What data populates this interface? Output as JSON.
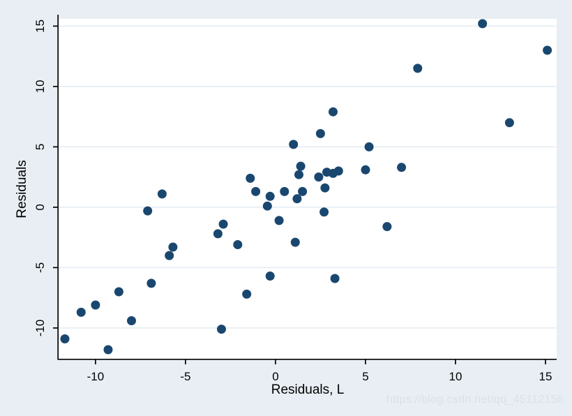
{
  "watermark": {
    "text": "https://blog.csdn.net/qq_45112156"
  },
  "chart_data": {
    "type": "scatter",
    "title": "",
    "xlabel": "Residuals, L",
    "ylabel": "Residuals",
    "xlim": [
      -12.05,
      15.62
    ],
    "ylim": [
      -12.55,
      15.6
    ],
    "xticks": [
      -10,
      -5,
      0,
      5,
      10,
      15
    ],
    "yticks": [
      -10,
      -5,
      0,
      5,
      10,
      15
    ],
    "grid": "horizontal-only",
    "legend_position": "none",
    "marker_color": "#1a476f",
    "background_color": "#e8eef3",
    "plot_background": "#ffffff",
    "gridline_color": "#e3ebf1",
    "axis_color": "#000000",
    "points": [
      [
        11.5,
        15.2
      ],
      [
        15.1,
        13.0
      ],
      [
        7.9,
        11.5
      ],
      [
        13.0,
        7.0
      ],
      [
        3.2,
        7.9
      ],
      [
        2.5,
        6.1
      ],
      [
        1.0,
        5.2
      ],
      [
        5.2,
        5.0
      ],
      [
        5.0,
        3.1
      ],
      [
        7.0,
        3.3
      ],
      [
        1.4,
        3.4
      ],
      [
        1.3,
        2.7
      ],
      [
        -1.4,
        2.4
      ],
      [
        2.4,
        2.5
      ],
      [
        2.85,
        2.9
      ],
      [
        3.2,
        2.8
      ],
      [
        3.5,
        3.0
      ],
      [
        2.75,
        1.6
      ],
      [
        -1.1,
        1.3
      ],
      [
        -0.3,
        0.9
      ],
      [
        0.5,
        1.3
      ],
      [
        1.5,
        1.3
      ],
      [
        1.2,
        0.7
      ],
      [
        -0.45,
        0.1
      ],
      [
        -6.3,
        1.1
      ],
      [
        -7.1,
        -0.3
      ],
      [
        0.2,
        -1.1
      ],
      [
        2.7,
        -0.4
      ],
      [
        -2.9,
        -1.4
      ],
      [
        -3.2,
        -2.2
      ],
      [
        -2.1,
        -3.1
      ],
      [
        1.1,
        -2.9
      ],
      [
        -5.7,
        -3.3
      ],
      [
        -5.9,
        -4.0
      ],
      [
        6.2,
        -1.6
      ],
      [
        -0.3,
        -5.7
      ],
      [
        3.3,
        -5.9
      ],
      [
        -6.9,
        -6.3
      ],
      [
        -1.6,
        -7.2
      ],
      [
        -8.7,
        -7.0
      ],
      [
        -10.0,
        -8.1
      ],
      [
        -10.8,
        -8.7
      ],
      [
        -8.0,
        -9.4
      ],
      [
        -3.0,
        -10.1
      ],
      [
        -11.7,
        -10.9
      ],
      [
        -9.3,
        -11.8
      ]
    ]
  }
}
